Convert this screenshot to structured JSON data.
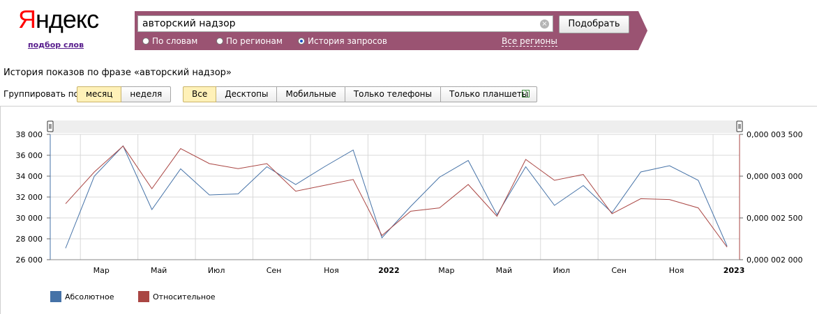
{
  "logo": {
    "first": "Я",
    "rest": "ндекс"
  },
  "wordstat_link": "подбор слов",
  "search": {
    "query": "авторский надзор",
    "button": "Подобрать"
  },
  "modes": [
    {
      "label": "По словам",
      "selected": false
    },
    {
      "label": "По регионам",
      "selected": false
    },
    {
      "label": "История запросов",
      "selected": true
    }
  ],
  "regions_link": "Все регионы",
  "history_title": "История показов по фразе «авторский надзор»",
  "group": {
    "label": "Группировать по:",
    "options": [
      {
        "label": "месяц",
        "selected": true
      },
      {
        "label": "неделя",
        "selected": false
      }
    ]
  },
  "devices": [
    {
      "label": "Все",
      "selected": true
    },
    {
      "label": "Десктопы",
      "selected": false
    },
    {
      "label": "Мобильные",
      "selected": false
    },
    {
      "label": "Только телефоны",
      "selected": false
    },
    {
      "label": "Только планшеты",
      "selected": false
    }
  ],
  "help_icon": "?",
  "colors": {
    "absolute": "#4572a7",
    "relative": "#aa4643",
    "panel": "#9a5372",
    "active_button": "#fff1b8"
  },
  "chart_data": {
    "type": "line",
    "x": [
      "2021-02",
      "2021-03",
      "2021-04",
      "2021-05",
      "2021-06",
      "2021-07",
      "2021-08",
      "2021-09",
      "2021-10",
      "2021-11",
      "2021-12",
      "2022-01",
      "2022-02",
      "2022-03",
      "2022-04",
      "2022-05",
      "2022-06",
      "2022-07",
      "2022-08",
      "2022-09",
      "2022-10",
      "2022-11",
      "2022-12",
      "2023-01"
    ],
    "x_tick_labels": [
      {
        "x": "2021-03",
        "label": "Мар",
        "bold": false
      },
      {
        "x": "2021-05",
        "label": "Май",
        "bold": false
      },
      {
        "x": "2021-07",
        "label": "Июл",
        "bold": false
      },
      {
        "x": "2021-09",
        "label": "Сен",
        "bold": false
      },
      {
        "x": "2021-11",
        "label": "Ноя",
        "bold": false
      },
      {
        "x": "2022-01",
        "label": "2022",
        "bold": true
      },
      {
        "x": "2022-03",
        "label": "Мар",
        "bold": false
      },
      {
        "x": "2022-05",
        "label": "Май",
        "bold": false
      },
      {
        "x": "2022-07",
        "label": "Июл",
        "bold": false
      },
      {
        "x": "2022-09",
        "label": "Сен",
        "bold": false
      },
      {
        "x": "2022-11",
        "label": "Ноя",
        "bold": false
      },
      {
        "x": "2023-01",
        "label": "2023",
        "bold": true
      }
    ],
    "series": [
      {
        "name": "Абсолютное",
        "axis": "left",
        "values": [
          27100,
          34000,
          36900,
          30800,
          34700,
          32200,
          32300,
          34900,
          33200,
          34900,
          36500,
          28100,
          31100,
          33900,
          35500,
          30300,
          34900,
          31200,
          33100,
          30500,
          34400,
          35000,
          33600,
          27300
        ]
      },
      {
        "name": "Относительное",
        "axis": "right",
        "values": [
          2.67e-06,
          3.05e-06,
          3.36e-06,
          2.85e-06,
          3.33e-06,
          3.15e-06,
          3.09e-06,
          3.15e-06,
          2.82e-06,
          2.89e-06,
          2.96e-06,
          2.29e-06,
          2.58e-06,
          2.62e-06,
          2.9e-06,
          2.52e-06,
          3.2e-06,
          2.95e-06,
          3.02e-06,
          2.55e-06,
          2.73e-06,
          2.72e-06,
          2.62e-06,
          2.15e-06
        ]
      }
    ],
    "y_left": {
      "range": [
        26000,
        38000
      ],
      "ticks": [
        "26 000",
        "28 000",
        "30 000",
        "32 000",
        "34 000",
        "36 000",
        "38 000"
      ],
      "values": [
        26000,
        28000,
        30000,
        32000,
        34000,
        36000,
        38000
      ]
    },
    "y_right": {
      "range": [
        2e-06,
        3.5e-06
      ],
      "ticks": [
        "0,000 002 000",
        "0,000 002 500",
        "0,000 003 000",
        "0,000 003 500"
      ],
      "values": [
        2e-06,
        2.5e-06,
        3e-06,
        3.5e-06
      ]
    },
    "grid": true,
    "legend": "bottom-left"
  }
}
